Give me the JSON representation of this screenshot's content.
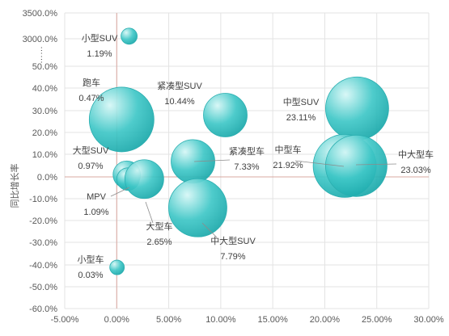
{
  "chart_data": {
    "type": "bubble",
    "xlabel": "",
    "ylabel": "同比增长率",
    "xlim": [
      -5,
      30
    ],
    "x_ticks": [
      "-5.00%",
      "0.00%",
      "5.00%",
      "10.00%",
      "15.00%",
      "20.00%",
      "25.00%",
      "30.00%"
    ],
    "y_ticks": [
      "-60.0%",
      "-50.0%",
      "-40.0%",
      "-30.0%",
      "-20.0%",
      "-10.0%",
      "0.0%",
      "10.0%",
      "20.0%",
      "30.0%",
      "40.0%",
      "50.0%",
      "3000.0%",
      "3500.0%"
    ],
    "y_break_label": "……",
    "colors": {
      "bubble": "#3fc7c7",
      "bubble_light": "#d6f7f6",
      "bubble_dark": "#1aa8aa",
      "ref_line": "#d9a8a0"
    },
    "points": [
      {
        "name": "小型SUV",
        "share": "1.19%",
        "x": 1.19,
        "y": 3050,
        "r": 10
      },
      {
        "name": "跑车",
        "share": "0.47%",
        "x": 0.47,
        "y": 26,
        "r": 40
      },
      {
        "name": "紧凑型SUV",
        "share": "10.44%",
        "x": 10.44,
        "y": 28,
        "r": 27
      },
      {
        "name": "中型SUV",
        "share": "23.11%",
        "x": 23.11,
        "y": 31,
        "r": 39
      },
      {
        "name": "中型车",
        "share": "21.92%",
        "x": 21.92,
        "y": 5,
        "r": 39
      },
      {
        "name": "中大型车",
        "share": "23.03%",
        "x": 23.03,
        "y": 5,
        "r": 38
      },
      {
        "name": "紧凑型车",
        "share": "7.33%",
        "x": 7.33,
        "y": 7,
        "r": 27
      },
      {
        "name": "大型SUV",
        "share": "0.97%",
        "x": 0.97,
        "y": 1,
        "r": 17
      },
      {
        "name": "MPV",
        "share": "1.09%",
        "x": 1.09,
        "y": -1,
        "r": 14
      },
      {
        "name": "大型车",
        "share": "2.65%",
        "x": 2.65,
        "y": -1,
        "r": 24
      },
      {
        "name": "中大型SUV",
        "share": "7.79%",
        "x": 7.79,
        "y": -14,
        "r": 36
      },
      {
        "name": "小型车",
        "share": "0.03%",
        "x": 0.03,
        "y": -41,
        "r": 9
      }
    ]
  }
}
